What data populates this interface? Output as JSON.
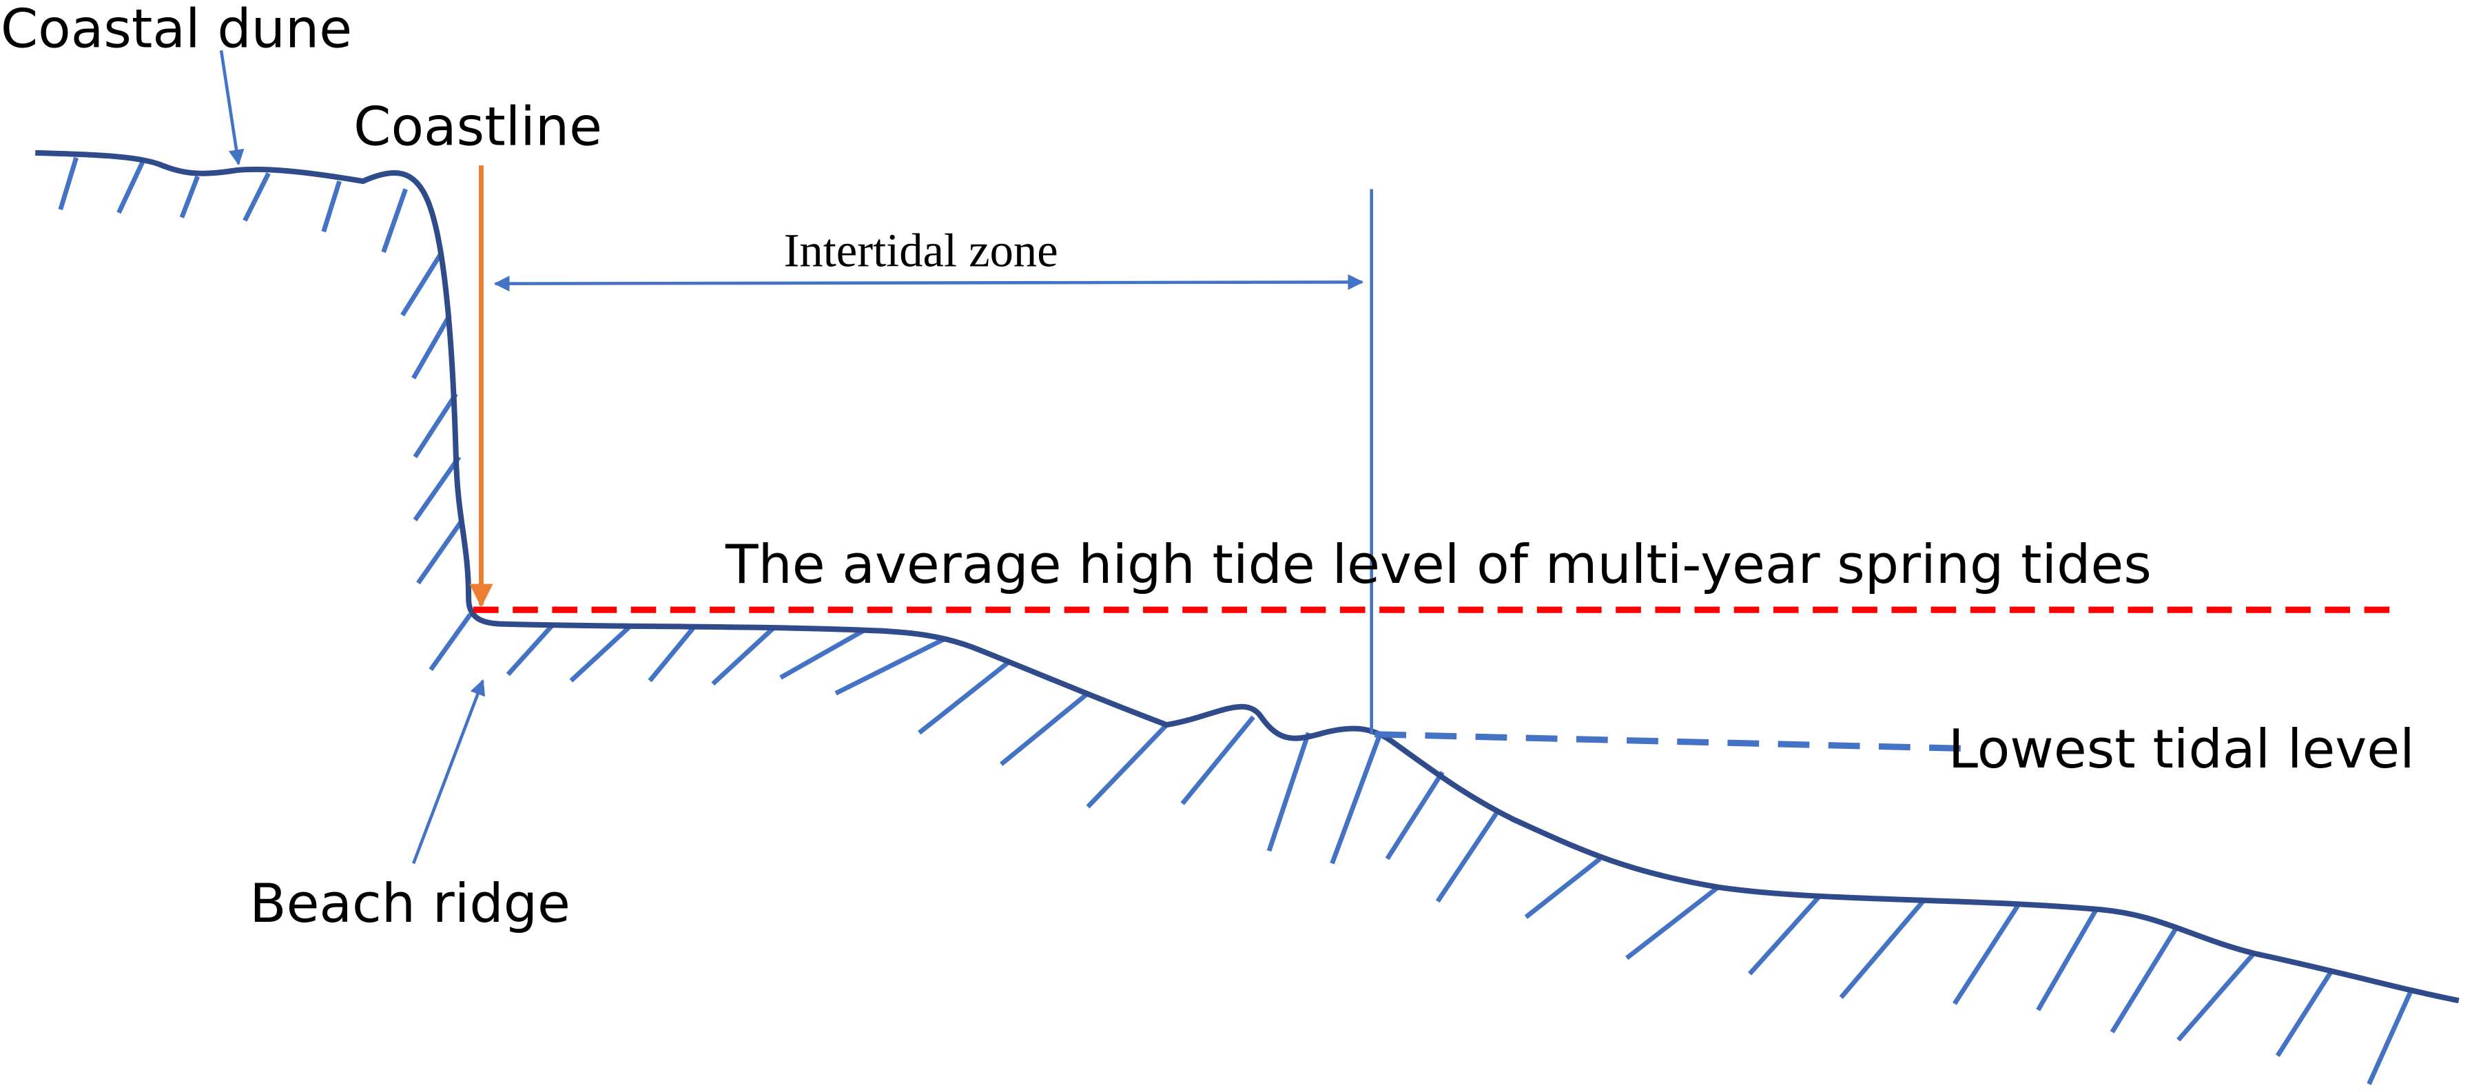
{
  "labels": {
    "coastal_dune": "Coastal dune",
    "coastline": "Coastline",
    "intertidal_zone": "Intertidal zone",
    "high_tide": "The average high tide level of multi-year spring tides",
    "lowest_tide": "Lowest tidal level",
    "beach_ridge": "Beach ridge"
  }
}
